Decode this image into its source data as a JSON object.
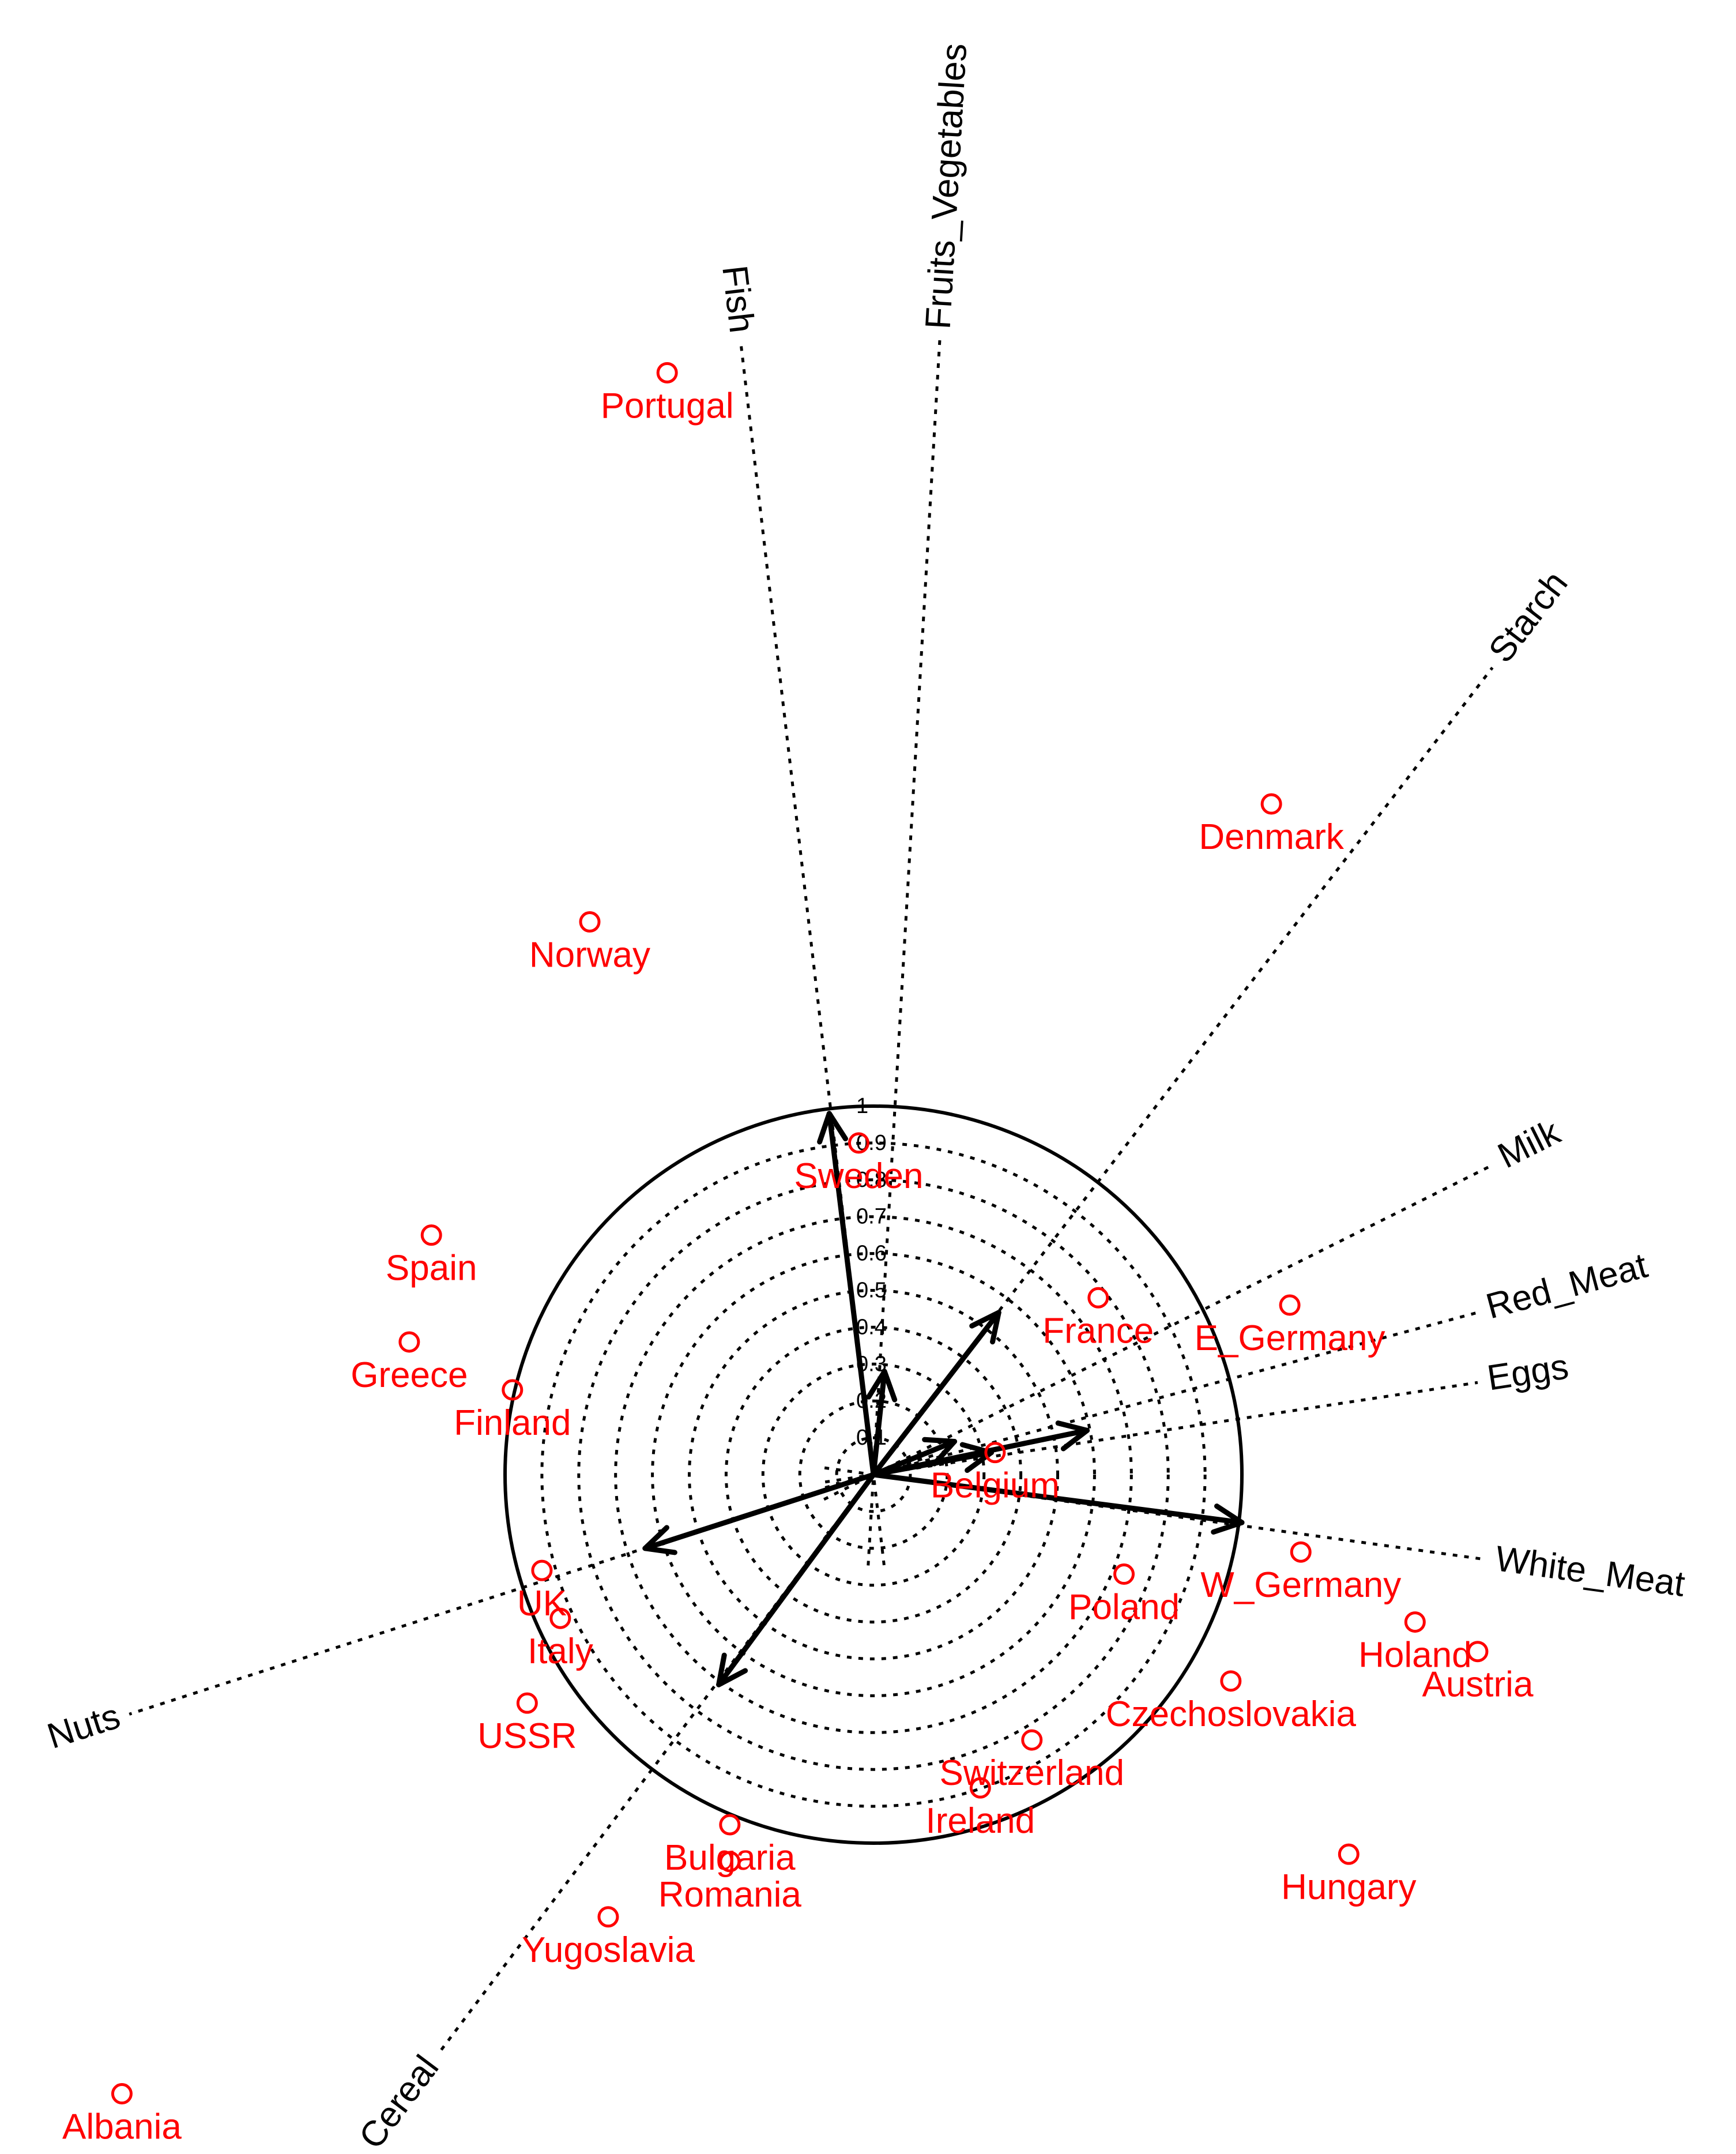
{
  "chart_data": {
    "type": "scatter",
    "title": "",
    "xlabel": "",
    "ylabel": "",
    "grid": "concentric dotted circles",
    "legend": "none",
    "unit_circle_ticks": [
      "0.1",
      "0.2",
      "0.3",
      "0.4",
      "0.5",
      "0.6",
      "0.7",
      "0.8",
      "0.9",
      "1"
    ],
    "variables": [
      {
        "name": "Fish",
        "x": -0.12,
        "y": 0.98,
        "axis_end": [
          -0.36,
          3.07
        ],
        "label": "Fish"
      },
      {
        "name": "Fruits_Vegetables",
        "x": 0.03,
        "y": 0.28,
        "axis_end": [
          0.18,
          3.08
        ],
        "label": "Fruits_Vegetables"
      },
      {
        "name": "Starch",
        "x": 0.34,
        "y": 0.44,
        "axis_end": [
          1.68,
          2.19
        ],
        "label": "Starch"
      },
      {
        "name": "Milk",
        "x": 0.22,
        "y": 0.09,
        "axis_end": [
          1.68,
          0.84
        ],
        "label": "Milk"
      },
      {
        "name": "Red_Meat",
        "x": 0.32,
        "y": 0.06,
        "axis_end": [
          1.64,
          0.44
        ],
        "label": "Red_Meat"
      },
      {
        "name": "Eggs",
        "x": 0.58,
        "y": 0.12,
        "axis_end": [
          1.64,
          0.25
        ],
        "label": "Eggs"
      },
      {
        "name": "White_Meat",
        "x": 1.0,
        "y": -0.13,
        "axis_end": [
          1.66,
          -0.23
        ],
        "label": "White_Meat"
      },
      {
        "name": "Nuts",
        "x": -0.62,
        "y": -0.2,
        "axis_end": [
          -2.02,
          -0.65
        ],
        "label": "Nuts"
      },
      {
        "name": "Cereal",
        "x": -0.42,
        "y": -0.57,
        "axis_end": [
          -1.18,
          -1.57
        ],
        "label": "Cereal"
      }
    ],
    "points": [
      {
        "name": "Portugal",
        "x": -0.56,
        "y": 2.99
      },
      {
        "name": "Denmark",
        "x": 1.08,
        "y": 1.82
      },
      {
        "name": "Norway",
        "x": -0.77,
        "y": 1.5
      },
      {
        "name": "Sweden",
        "x": -0.04,
        "y": 0.9
      },
      {
        "name": "Spain",
        "x": -1.2,
        "y": 0.65
      },
      {
        "name": "Greece",
        "x": -1.26,
        "y": 0.36
      },
      {
        "name": "France",
        "x": 0.61,
        "y": 0.48
      },
      {
        "name": "E_Germany",
        "x": 1.13,
        "y": 0.46
      },
      {
        "name": "Finland",
        "x": -0.98,
        "y": 0.23
      },
      {
        "name": "Belgium",
        "x": 0.33,
        "y": 0.06
      },
      {
        "name": "UK",
        "x": -0.9,
        "y": -0.26
      },
      {
        "name": "Italy",
        "x": -0.85,
        "y": -0.39
      },
      {
        "name": "W_Germany",
        "x": 1.16,
        "y": -0.21
      },
      {
        "name": "Poland",
        "x": 0.68,
        "y": -0.27
      },
      {
        "name": "Holand",
        "x": 1.47,
        "y": -0.4
      },
      {
        "name": "Austria",
        "x": 1.64,
        "y": -0.48
      },
      {
        "name": "USSR",
        "x": -0.94,
        "y": -0.62
      },
      {
        "name": "Czechoslovakia",
        "x": 0.97,
        "y": -0.56
      },
      {
        "name": "Switzerland",
        "x": 0.43,
        "y": -0.72
      },
      {
        "name": "Ireland",
        "x": 0.29,
        "y": -0.85
      },
      {
        "name": "Bulgaria",
        "x": -0.39,
        "y": -0.95
      },
      {
        "name": "Romania",
        "x": -0.39,
        "y": -1.05
      },
      {
        "name": "Hungary",
        "x": 1.29,
        "y": -1.03
      },
      {
        "name": "Yugoslavia",
        "x": -0.72,
        "y": -1.2
      },
      {
        "name": "Albania",
        "x": -2.04,
        "y": -1.68
      }
    ],
    "colors": {
      "points": "#ff0000",
      "axes": "#000000"
    }
  }
}
